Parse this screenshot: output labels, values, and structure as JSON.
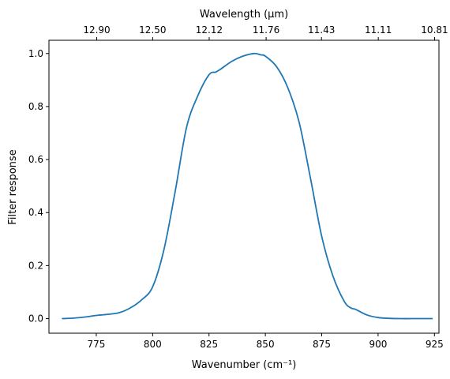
{
  "chart_data": {
    "type": "line",
    "xlabel": "Wavenumber (cm⁻¹)",
    "ylabel": "Filter response",
    "top_xlabel": "Wavelength (μm)",
    "xlim": [
      754,
      927
    ],
    "ylim": [
      -0.055,
      1.05
    ],
    "grid": false,
    "x_ticks": [
      "775",
      "800",
      "825",
      "850",
      "875",
      "900",
      "925"
    ],
    "y_ticks": [
      "0.0",
      "0.2",
      "0.4",
      "0.6",
      "0.8",
      "1.0"
    ],
    "top_ticks": [
      "12.90",
      "12.50",
      "12.12",
      "11.76",
      "11.43",
      "11.11",
      "10.81"
    ],
    "series": [
      {
        "color": "#1f77b4",
        "x": [
          760,
          765,
          770,
          775,
          780,
          785,
          790,
          795,
          800,
          805,
          810,
          815,
          820,
          825,
          828,
          830,
          835,
          840,
          845,
          848,
          850,
          855,
          860,
          865,
          870,
          875,
          880,
          885,
          888,
          890,
          895,
          900,
          905,
          910,
          915,
          920,
          924
        ],
        "y": [
          0.0,
          0.002,
          0.006,
          0.012,
          0.016,
          0.022,
          0.04,
          0.07,
          0.12,
          0.26,
          0.48,
          0.72,
          0.84,
          0.92,
          0.93,
          0.94,
          0.97,
          0.99,
          1.0,
          0.995,
          0.99,
          0.95,
          0.87,
          0.74,
          0.53,
          0.31,
          0.16,
          0.065,
          0.04,
          0.035,
          0.014,
          0.004,
          0.001,
          0.0,
          0.0,
          0.0,
          0.0
        ]
      }
    ]
  }
}
